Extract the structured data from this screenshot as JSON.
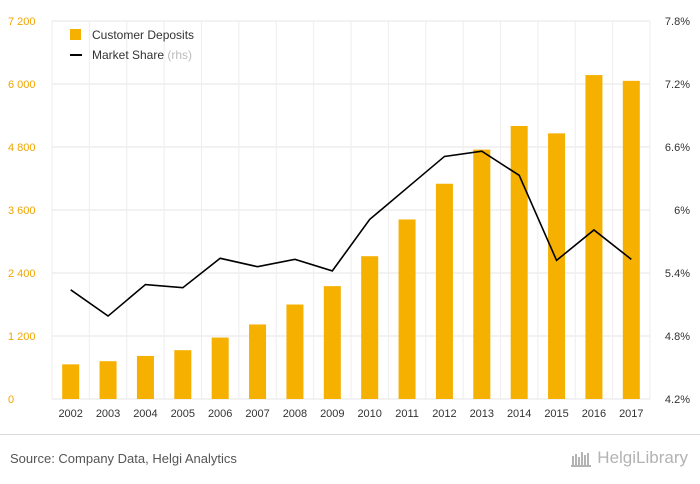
{
  "chart_data": {
    "type": "bar",
    "categories": [
      "2002",
      "2003",
      "2004",
      "2005",
      "2006",
      "2007",
      "2008",
      "2009",
      "2010",
      "2011",
      "2012",
      "2013",
      "2014",
      "2015",
      "2016",
      "2017"
    ],
    "series": [
      {
        "name": "Customer Deposits",
        "type": "bar",
        "axis": "left",
        "color": "#F5B000",
        "values": [
          660,
          720,
          820,
          930,
          1170,
          1420,
          1800,
          2150,
          2720,
          3420,
          4100,
          4750,
          5200,
          5060,
          6170,
          6060
        ]
      },
      {
        "name": "Market Share",
        "name_suffix": "(rhs)",
        "type": "line",
        "axis": "right",
        "color": "#000000",
        "values": [
          5.24,
          4.99,
          5.29,
          5.26,
          5.54,
          5.46,
          5.53,
          5.42,
          5.91,
          6.21,
          6.51,
          6.56,
          6.33,
          5.52,
          5.81,
          5.53
        ]
      }
    ],
    "left_axis": {
      "min": 0,
      "max": 7200,
      "ticks": [
        "0",
        "1 200",
        "2 400",
        "3 600",
        "4 800",
        "6 000",
        "7 200"
      ],
      "tick_color": "#F5B000"
    },
    "right_axis": {
      "min": 4.2,
      "max": 7.8,
      "ticks": [
        "4.2%",
        "4.8%",
        "5.4%",
        "6%",
        "6.6%",
        "7.2%",
        "7.8%"
      ]
    },
    "grid": true,
    "legend": "top-left"
  },
  "footer": {
    "source": "Source: Company Data, Helgi Analytics",
    "brand": "HelgiLibrary"
  }
}
